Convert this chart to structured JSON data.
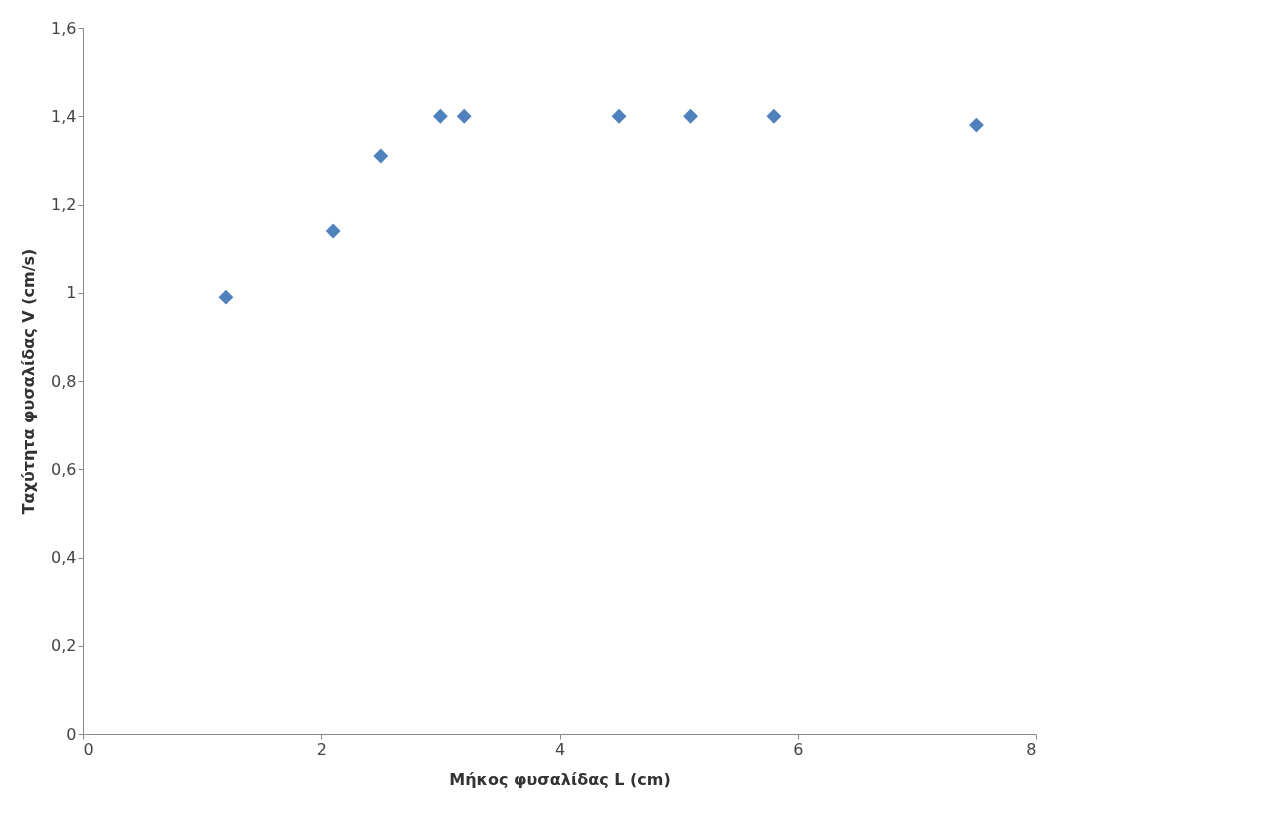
{
  "chart_data": {
    "type": "scatter",
    "xlabel": "Μήκος φυσαλίδας L (cm)",
    "ylabel": "Ταχύτητα φυσαλίδας V (cm/s)",
    "x": [
      1.2,
      2.1,
      2.5,
      3.0,
      3.2,
      4.5,
      5.1,
      5.8,
      7.5
    ],
    "series": [
      {
        "color": "#4f81bd",
        "values": [
          0.99,
          1.14,
          1.31,
          1.4,
          1.4,
          1.4,
          1.4,
          1.4,
          1.38
        ]
      }
    ],
    "xlim": [
      0,
      8
    ],
    "xticks": [
      0,
      2,
      4,
      6,
      8
    ],
    "ylim": [
      0,
      1.6
    ],
    "yticks": [
      0,
      {
        "value": 0.2,
        "label": "0,2"
      },
      {
        "value": 0.4,
        "label": "0,4"
      },
      {
        "value": 0.6,
        "label": "0,6"
      },
      {
        "value": 0.8,
        "label": "0,8"
      },
      1,
      {
        "value": 1.2,
        "label": "1,2"
      },
      {
        "value": 1.4,
        "label": "1,4"
      },
      {
        "value": 1.6,
        "label": "1,6"
      }
    ],
    "grid": false,
    "legend": false,
    "marker": "diamond"
  }
}
